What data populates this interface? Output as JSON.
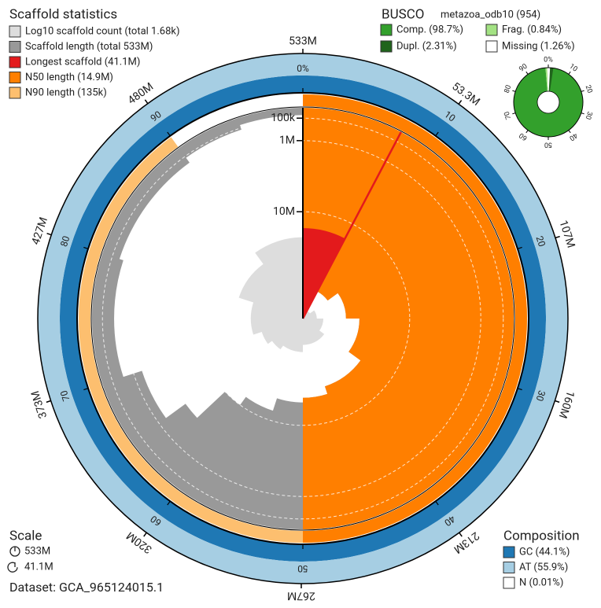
{
  "chart_data": {
    "type": "snail",
    "title": "Scaffold statistics",
    "legend": [
      {
        "label": "Log10 scaffold count (total 1.68k)",
        "color": "#dddddd"
      },
      {
        "label": "Scaffold length (total 533M)",
        "color": "#999999"
      },
      {
        "label": "Longest scaffold (41.1M)",
        "color": "#e31a1c",
        "value": 41.1
      },
      {
        "label": "N50 length (14.9M)",
        "color": "#ff7f00",
        "value": 14.9,
        "percent": 50
      },
      {
        "label": "N90 length (135k)",
        "color": "#fdbf6f",
        "value": 0.135,
        "percent": 90
      }
    ],
    "angle_lim": [
      0,
      533
    ],
    "angle_ticks": [
      {
        "value": 533,
        "label": "533M"
      },
      {
        "value": 53.3,
        "label": "53.3M"
      },
      {
        "value": 107,
        "label": "107M"
      },
      {
        "value": 160,
        "label": "160M"
      },
      {
        "value": 213,
        "label": "213M"
      },
      {
        "value": 267,
        "label": "267M"
      },
      {
        "value": 320,
        "label": "320M"
      },
      {
        "value": 373,
        "label": "373M"
      },
      {
        "value": 427,
        "label": "427M"
      },
      {
        "value": 480,
        "label": "480M"
      }
    ],
    "percent_ticks": [
      {
        "value": 0,
        "label": "0%"
      },
      10,
      20,
      30,
      40,
      50,
      60,
      70,
      80,
      90
    ],
    "rlim": [
      0,
      41.1
    ],
    "rticks": [
      {
        "value": 0.1,
        "label": "100k"
      },
      {
        "value": 1,
        "label": "1M"
      },
      {
        "value": 10,
        "label": "10M"
      }
    ],
    "length_profile": {
      "percent": [
        0,
        7.7,
        15,
        25,
        35,
        45,
        50,
        55,
        60,
        63,
        65,
        70,
        80,
        90,
        95,
        100
      ],
      "length": [
        41.1,
        30,
        26,
        22,
        18,
        16,
        14.9,
        12,
        10,
        4,
        1.6,
        0.45,
        0.3,
        0.135,
        0.05,
        0.01
      ]
    },
    "count_lim": [
      1,
      1680
    ],
    "count_profile": {
      "percent": [
        0,
        7.7,
        15,
        25,
        35,
        50,
        60,
        65,
        70,
        80,
        90,
        100
      ],
      "count": [
        1,
        2,
        3,
        5,
        8,
        14,
        20,
        30,
        60,
        200,
        600,
        1680
      ]
    },
    "scale": {
      "title": "Scale",
      "items": [
        "533M",
        "41.1M"
      ]
    },
    "dataset": "Dataset: GCA_965124015.1",
    "busco": {
      "title": "BUSCO",
      "lineage": "metazoa_odb10 (954)",
      "series": [
        {
          "name": "Comp. (98.7%)",
          "color": "#33a02c",
          "value": 98.7
        },
        {
          "name": "Dupl. (2.31%)",
          "color": "#20641c",
          "value": 2.31
        },
        {
          "name": "Frag. (0.84%)",
          "color": "#a3e283",
          "value": 0.84
        },
        {
          "name": "Missing (1.26%)",
          "color": "#ffffff",
          "value": 1.26
        }
      ],
      "ticks": [
        {
          "value": 0,
          "label": "0%"
        },
        10,
        20,
        30,
        40,
        50,
        60,
        70,
        80,
        90
      ]
    },
    "composition": {
      "title": "Composition",
      "series": [
        {
          "name": "GC (44.1%)",
          "color": "#1f78b4",
          "value": 44.1
        },
        {
          "name": "AT (55.9%)",
          "color": "#a6cee3",
          "value": 55.9
        },
        {
          "name": "N (0.01%)",
          "color": "#ffffff",
          "value": 0.01
        }
      ]
    }
  }
}
